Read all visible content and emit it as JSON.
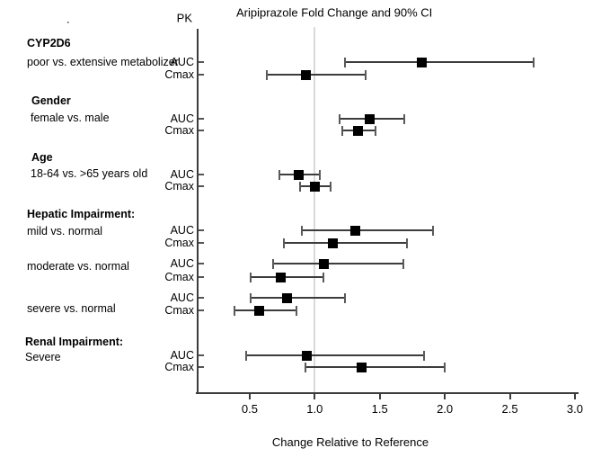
{
  "chart_data": {
    "type": "scatter",
    "variant": "forest-plot-with-90pct-CI-error-bars",
    "title": "Aripiprazole Fold Change and 90% CI",
    "pk_column_header": "PK",
    "xlabel": "Change Relative to Reference",
    "x_ticks": [
      0.5,
      1.0,
      1.5,
      2.0,
      2.5,
      3.0
    ],
    "xlim": [
      0.1,
      3.02
    ],
    "reference_line_x": 1.0,
    "grid": "off",
    "stray_dot": ".",
    "marker_color": "#000000",
    "reference_line_color": "#d9d9d9",
    "groups": [
      {
        "header": "CYP2D6",
        "comparisons": [
          {
            "label": "poor vs. extensive metabolizer",
            "rows": [
              {
                "pk": "AUC",
                "lo": 1.23,
                "mid": 1.82,
                "hi": 2.68
              },
              {
                "pk": "Cmax",
                "lo": 0.63,
                "mid": 0.93,
                "hi": 1.39
              }
            ]
          }
        ]
      },
      {
        "header": "Gender",
        "comparisons": [
          {
            "label": "female vs. male",
            "rows": [
              {
                "pk": "AUC",
                "lo": 1.19,
                "mid": 1.42,
                "hi": 1.69
              },
              {
                "pk": "Cmax",
                "lo": 1.21,
                "mid": 1.33,
                "hi": 1.47
              }
            ]
          }
        ]
      },
      {
        "header": "Age",
        "comparisons": [
          {
            "label": "18-64 vs. >65 years old",
            "rows": [
              {
                "pk": "AUC",
                "lo": 0.73,
                "mid": 0.88,
                "hi": 1.04
              },
              {
                "pk": "Cmax",
                "lo": 0.89,
                "mid": 1.0,
                "hi": 1.12
              }
            ]
          }
        ]
      },
      {
        "header": "Hepatic Impairment:",
        "comparisons": [
          {
            "label": "mild vs. normal",
            "rows": [
              {
                "pk": "AUC",
                "lo": 0.9,
                "mid": 1.31,
                "hi": 1.91
              },
              {
                "pk": "Cmax",
                "lo": 0.76,
                "mid": 1.14,
                "hi": 1.71
              }
            ]
          },
          {
            "label": "moderate vs. normal",
            "rows": [
              {
                "pk": "AUC",
                "lo": 0.68,
                "mid": 1.07,
                "hi": 1.68
              },
              {
                "pk": "Cmax",
                "lo": 0.51,
                "mid": 0.74,
                "hi": 1.07
              }
            ]
          },
          {
            "label": "severe vs. normal",
            "rows": [
              {
                "pk": "AUC",
                "lo": 0.51,
                "mid": 0.79,
                "hi": 1.23
              },
              {
                "pk": "Cmax",
                "lo": 0.38,
                "mid": 0.57,
                "hi": 0.86
              }
            ]
          }
        ]
      },
      {
        "header": "Renal Impairment:",
        "comparisons": [
          {
            "label": "Severe",
            "rows": [
              {
                "pk": "AUC",
                "lo": 0.47,
                "mid": 0.94,
                "hi": 1.84
              },
              {
                "pk": "Cmax",
                "lo": 0.93,
                "mid": 1.36,
                "hi": 2.0
              }
            ]
          }
        ]
      }
    ]
  }
}
